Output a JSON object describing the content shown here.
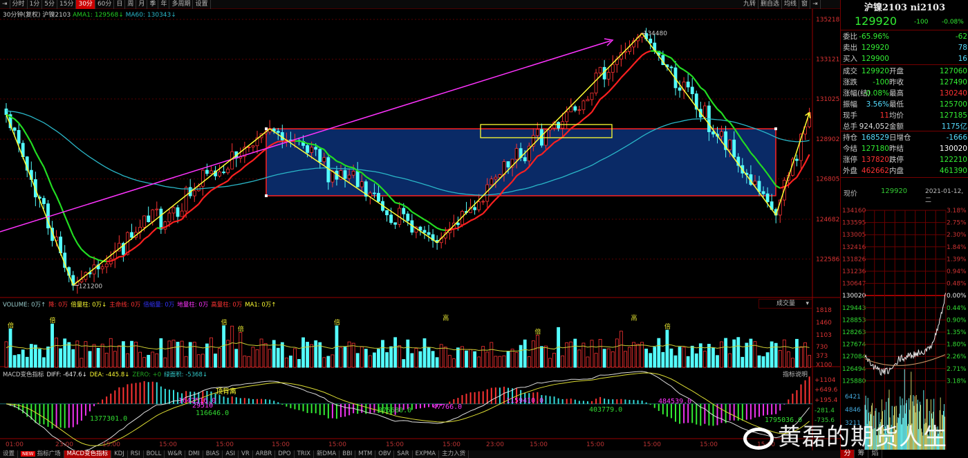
{
  "toolbar": {
    "items": [
      "分时",
      "1分",
      "5分",
      "15分",
      "30分",
      "60分",
      "日",
      "周",
      "月",
      "季",
      "年",
      "多周期",
      "设置"
    ],
    "active": "30分",
    "right_items": [
      "九转",
      "删自选",
      "均线",
      "窗"
    ]
  },
  "info": {
    "period": "30分钟(复权)",
    "symbol": "沪镍2103",
    "ama1": "AMA1: 129568↓",
    "ma60": "MA60: 130343↓"
  },
  "colors": {
    "up": "#ff3333",
    "down": "#54ffff",
    "ama_up": "#ff2020",
    "ama_down": "#22dd22",
    "ma60": "#2ab7c8",
    "zigzag": "#ffff33",
    "trend": "#ff33ff",
    "box_fill": "#0a2a66",
    "box_border": "#ff2222"
  },
  "chart_data": [
    {
      "type": "candlestick",
      "title": "沪镍2103",
      "yticks": [
        135218,
        133121,
        131025,
        128902,
        126805,
        124682,
        122586
      ],
      "xticks": [
        "01:00",
        "23:00",
        "15:00",
        "15:00",
        "15:00",
        "15:00",
        "15:00",
        "15:00",
        "15:00",
        "23:00",
        "15:00",
        "15:00",
        "15:00",
        "15:00",
        "15:00"
      ],
      "swing_points": [
        130200,
        121200,
        129450,
        123450,
        134480,
        124900,
        130300
      ],
      "annotations": {
        "high": "134480",
        "low": "121200"
      },
      "indicators": {
        "AMA1": 129568,
        "MA60": 130343
      }
    },
    {
      "type": "bar",
      "name": "VOLUME",
      "yticks": [
        "1818",
        "1460",
        "1103",
        "730",
        "373",
        "X100"
      ],
      "markers": [
        "倍",
        "高"
      ],
      "legend": [
        "VOLUME: 0万↑",
        "降: 0万",
        "倍量柱: 0万↓",
        "主命线: 0万",
        "倍缩量: 0万",
        "地量柱: 0万",
        "高量柱: 0万",
        "MA1: 0万↑"
      ],
      "selector": "成交量"
    },
    {
      "type": "bar",
      "name": "MACD变色指标",
      "yticks": [
        "+1104",
        "+649.6",
        "+195.4",
        "-281.4",
        "-735.6"
      ],
      "legend": [
        "MACD变色指标",
        "DIFF: -647.6↓",
        "DEA: -445.8↓",
        "ZERO: +0",
        "绿面积: -5368↓"
      ],
      "labels": [
        {
          "t": "1377301.0",
          "c": "#33dd33"
        },
        {
          "t": "1642516.0",
          "c": "#ff33ff"
        },
        {
          "t": "29510",
          "c": "#ff33ff"
        },
        {
          "t": "116646.0",
          "c": "#33dd33"
        },
        {
          "t": "顶背离",
          "c": "#ffff33"
        },
        {
          "t": "875680.0",
          "c": "#33dd33"
        },
        {
          "t": "47766.0",
          "c": "#ff33ff"
        },
        {
          "t": "1159410.0",
          "c": "#ff33ff"
        },
        {
          "t": "403779.0",
          "c": "#33dd33"
        },
        {
          "t": "484539.0",
          "c": "#ff33ff"
        },
        {
          "t": "1795036.0",
          "c": "#33dd33"
        }
      ],
      "help": "指标说明"
    }
  ],
  "quote": {
    "title": "沪镍2103 ni2103",
    "price": "129920",
    "change": "-100",
    "pct": "-0.08%",
    "rows": [
      {
        "l": "委比",
        "v": "-65.96%",
        "vc": "#33ee33",
        "l2": "",
        "v2": "-62",
        "v2c": "#33ee33"
      },
      {
        "l": "卖出",
        "v": "129920",
        "vc": "#33ee33",
        "l2": "",
        "v2": "78",
        "v2c": "#55ddff"
      },
      {
        "l": "买入",
        "v": "129900",
        "vc": "#33ee33",
        "l2": "",
        "v2": "16",
        "v2c": "#55ddff"
      },
      {
        "l": "成交",
        "v": "129920",
        "vc": "#33ee33",
        "l2": "开盘",
        "v2": "127060",
        "v2c": "#33ee33"
      },
      {
        "l": "涨跌",
        "v": "-100",
        "vc": "#33ee33",
        "l2": "昨收",
        "v2": "127490",
        "v2c": "#33ee33"
      },
      {
        "l": "涨幅(结)",
        "v": "-0.08%",
        "vc": "#33ee33",
        "l2": "最高",
        "v2": "130240",
        "v2c": "#ff3333"
      },
      {
        "l": "振幅",
        "v": "3.56%",
        "vc": "#55ddff",
        "l2": "最低",
        "v2": "125700",
        "v2c": "#33ee33"
      },
      {
        "l": "现手",
        "v": "11",
        "vc": "#ff3333",
        "l2": "均价",
        "v2": "127185",
        "v2c": "#33ee33"
      },
      {
        "l": "总手",
        "v": "924,052",
        "vc": "#dddddd",
        "l2": "金额",
        "v2": "1175亿",
        "v2c": "#55ddff"
      },
      {
        "l": "持仓",
        "v": "168529",
        "vc": "#55ddff",
        "l2": "日增仓",
        "v2": "-1666",
        "v2c": "#55ddff"
      },
      {
        "l": "今结",
        "v": "127180",
        "vc": "#33ee33",
        "l2": "昨结",
        "v2": "130020",
        "v2c": "#ffffff"
      },
      {
        "l": "涨停",
        "v": "137820",
        "vc": "#ff3333",
        "l2": "跌停",
        "v2": "122210",
        "v2c": "#33ee33"
      },
      {
        "l": "外盘",
        "v": "462662",
        "vc": "#ff3333",
        "l2": "内盘",
        "v2": "461390",
        "v2c": "#33ee33"
      }
    ],
    "now_label": "现价",
    "now_price": "129920",
    "date": "2021-01-12,二"
  },
  "intraday": {
    "prices": [
      "134160",
      "133595",
      "133005",
      "132416",
      "131826",
      "131236",
      "130647",
      "130020",
      "129443",
      "128853",
      "128263",
      "127674",
      "127084",
      "126494",
      "125880"
    ],
    "pcts": [
      "3.18%",
      "2.75%",
      "2.30%",
      "1.84%",
      "1.39%",
      "0.94%",
      "0.48%",
      "0.00%",
      "0.44%",
      "0.90%",
      "1.35%",
      "1.80%",
      "2.26%",
      "2.71%",
      "3.18%"
    ],
    "vol_ticks": [
      "6421",
      "4846",
      "3211"
    ],
    "tabs": [
      "分",
      "筹",
      "焰"
    ]
  },
  "bottom": {
    "tabs": [
      "设置",
      "指标广场",
      "MACD变色指标",
      "KDJ",
      "RSI",
      "BOLL",
      "W&R",
      "DMI",
      "BIAS",
      "ASI",
      "VR",
      "ARBR",
      "DPO",
      "TRIX",
      "新DMA",
      "BBI",
      "MTM",
      "OBV",
      "SAR",
      "EXPMA",
      "主力入货"
    ],
    "new_badge": "NEW",
    "active": "MACD变色指标"
  },
  "watermark": "黄磊的期货人生"
}
